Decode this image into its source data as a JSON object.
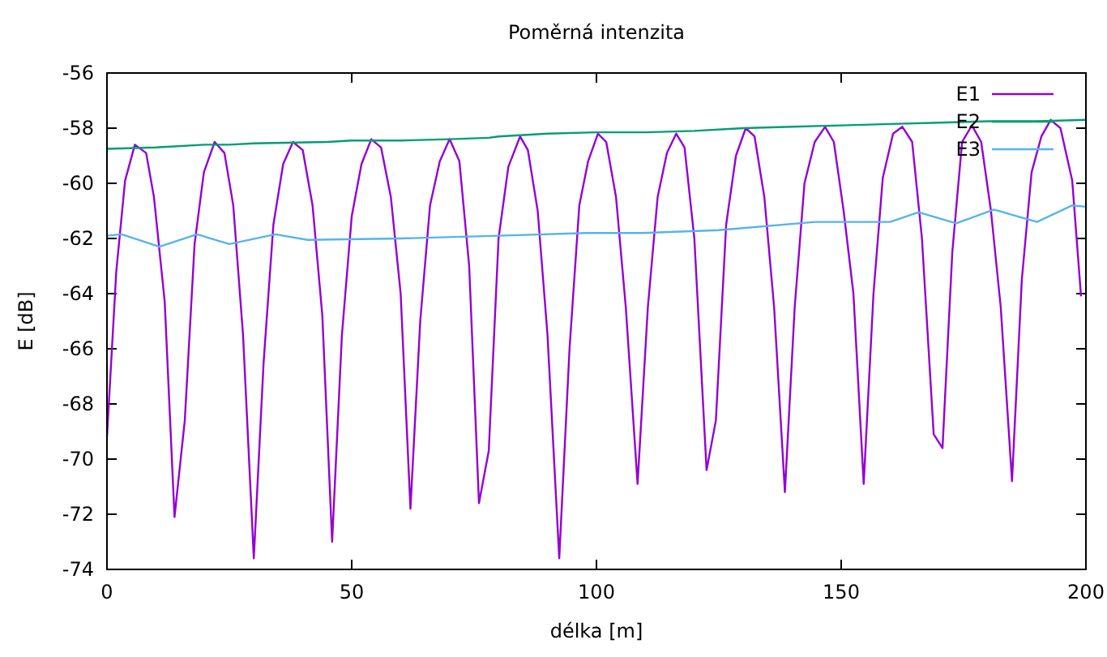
{
  "chart_data": {
    "type": "line",
    "title": "Poměrná intenzita",
    "xlabel": "délka [m]",
    "ylabel": "E [dB]",
    "xlim": [
      0,
      200
    ],
    "xticks": [
      0,
      50,
      100,
      150,
      200
    ],
    "ylim": [
      -74,
      -56
    ],
    "yticks": [
      -74,
      -72,
      -70,
      -68,
      -66,
      -64,
      -62,
      -60,
      -58,
      -56
    ],
    "grid": false,
    "legend": "top right",
    "marker": "none",
    "line_style": "solid",
    "series": [
      {
        "name": "E1",
        "color": "#9400d3",
        "x": [
          0,
          1.9,
          3.7,
          5.7,
          8,
          9.6,
          11.8,
          13.8,
          15.9,
          17.9,
          19.8,
          22,
          24,
          25.8,
          27.8,
          30,
          32,
          34,
          36,
          38,
          40,
          42,
          44,
          46,
          48,
          50,
          52,
          54,
          56,
          58,
          60,
          62,
          64,
          66,
          68,
          70,
          72,
          74,
          76,
          78,
          80,
          82,
          84.4,
          86,
          88,
          90,
          92.4,
          94.5,
          96.5,
          98.3,
          100.3,
          102,
          104,
          106,
          108.4,
          110.5,
          112.5,
          114.4,
          116.3,
          118,
          120,
          122.5,
          124.4,
          126.5,
          128.5,
          130.5,
          132.3,
          134.3,
          136.3,
          138.5,
          140.5,
          142.5,
          144.6,
          146.7,
          148.5,
          150.5,
          152.5,
          154.6,
          156.6,
          158.5,
          160.6,
          162.5,
          164.5,
          166.5,
          168.9,
          170.7,
          172.7,
          174.7,
          176.7,
          178.6,
          180.6,
          182.6,
          184.9,
          186.9,
          188.9,
          190.9,
          192.8,
          194.8,
          197.2,
          199
        ],
        "values": [
          -69.2,
          -63.2,
          -59.9,
          -58.6,
          -58.9,
          -60.5,
          -64.3,
          -72.1,
          -68.6,
          -62.2,
          -59.6,
          -58.5,
          -58.9,
          -60.8,
          -65.5,
          -73.6,
          -66.5,
          -61.5,
          -59.3,
          -58.5,
          -58.8,
          -60.8,
          -64.8,
          -73.0,
          -65.5,
          -61.2,
          -59.3,
          -58.4,
          -58.7,
          -60.5,
          -64.0,
          -71.8,
          -65.0,
          -60.8,
          -59.2,
          -58.4,
          -59.2,
          -63.0,
          -71.6,
          -69.7,
          -62.0,
          -59.4,
          -58.3,
          -58.8,
          -61.0,
          -65.5,
          -73.6,
          -66.0,
          -60.8,
          -59.2,
          -58.2,
          -58.5,
          -60.5,
          -64.5,
          -70.9,
          -64.5,
          -60.5,
          -58.9,
          -58.2,
          -58.7,
          -62.0,
          -70.4,
          -68.6,
          -61.5,
          -59.0,
          -58.0,
          -58.3,
          -60.5,
          -64.5,
          -71.2,
          -64.5,
          -60.0,
          -58.5,
          -57.95,
          -58.5,
          -61.0,
          -64.0,
          -70.9,
          -64.0,
          -59.8,
          -58.2,
          -57.95,
          -58.5,
          -62.0,
          -69.1,
          -69.6,
          -62.5,
          -58.5,
          -57.9,
          -58.5,
          -61.0,
          -64.5,
          -70.8,
          -63.5,
          -59.6,
          -58.3,
          -57.7,
          -58.0,
          -59.9,
          -64.1
        ]
      },
      {
        "name": "E2",
        "color": "#009e73",
        "x": [
          0,
          10,
          20,
          25,
          30,
          45,
          50,
          60,
          70,
          78,
          80,
          90,
          100,
          110,
          120,
          130,
          140,
          150,
          160,
          170,
          180,
          190,
          200
        ],
        "values": [
          -58.75,
          -58.7,
          -58.6,
          -58.6,
          -58.55,
          -58.5,
          -58.45,
          -58.45,
          -58.4,
          -58.35,
          -58.3,
          -58.2,
          -58.15,
          -58.15,
          -58.1,
          -58.0,
          -57.95,
          -57.9,
          -57.85,
          -57.8,
          -57.75,
          -57.75,
          -57.7
        ]
      },
      {
        "name": "E3",
        "color": "#56b4e9",
        "x": [
          0,
          3,
          10.7,
          18.4,
          25,
          34.4,
          41,
          60,
          80,
          98,
          109.5,
          125,
          144.7,
          160,
          165.8,
          173.5,
          181.2,
          190,
          197.2,
          200
        ],
        "values": [
          -61.9,
          -61.85,
          -62.3,
          -61.85,
          -62.2,
          -61.85,
          -62.05,
          -62.0,
          -61.9,
          -61.8,
          -61.8,
          -61.7,
          -61.4,
          -61.4,
          -61.05,
          -61.45,
          -60.95,
          -61.4,
          -60.8,
          -60.85
        ]
      }
    ]
  }
}
